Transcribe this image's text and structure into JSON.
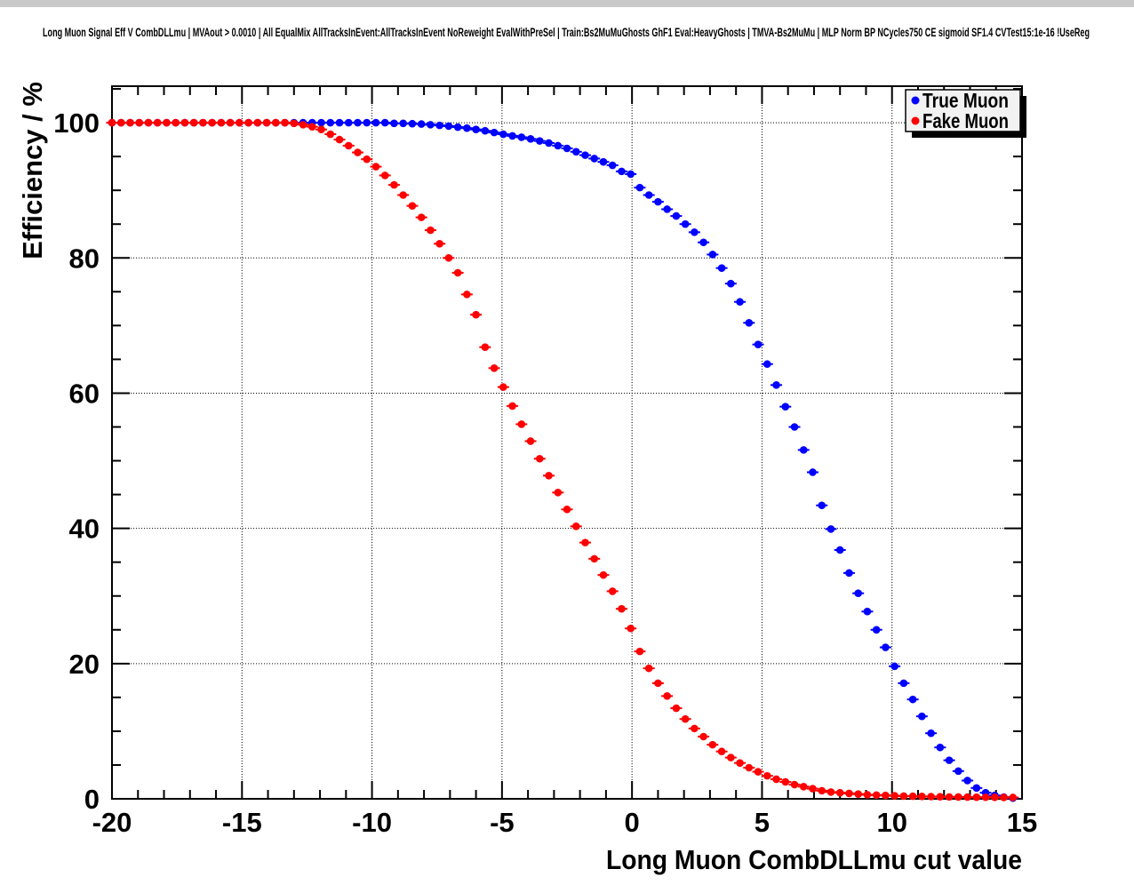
{
  "chart_data": {
    "type": "scatter",
    "title": "Long Muon Signal Eff V CombDLLmu | MVAout > 0.0010 | All EqualMix AllTracksInEvent:AllTracksInEvent NoReweight EvalWithPreSel | Train:Bs2MuMuGhosts GhF1 Eval:HeavyGhosts | TMVA-Bs2MuMu | MLP Norm BP NCycles750 CE sigmoid SF1.4 CVTest15:1e-16 !UseReg",
    "xlabel": "Long Muon CombDLLmu cut value",
    "ylabel": "Efficiency / %",
    "xlim": [
      -20,
      15
    ],
    "ylim": [
      0,
      105.4
    ],
    "x_major_ticks": [
      -20,
      -15,
      -10,
      -5,
      0,
      5,
      10,
      15
    ],
    "y_major_ticks": [
      0,
      20,
      40,
      60,
      80,
      100
    ],
    "x_minor_step": 1,
    "y_minor_step": 5,
    "grid": {
      "style": "dotted",
      "x_lines": [
        -15,
        -10,
        -5,
        0,
        5,
        10
      ],
      "y_lines": [
        20,
        40,
        60,
        80,
        100
      ]
    },
    "legend": {
      "position": "top-right",
      "entries": [
        {
          "label": "True Muon",
          "color": "#0000ff"
        },
        {
          "label": "Fake Muon",
          "color": "#ff0000"
        }
      ]
    },
    "colors": {
      "true_muon": "#0000ff",
      "fake_muon": "#ff0000",
      "legend_bg": "#f2f2f2",
      "frame": "#000000"
    },
    "x": [
      -20,
      -19.65,
      -19.3,
      -18.95,
      -18.6,
      -18.25,
      -17.9,
      -17.55,
      -17.2,
      -16.85,
      -16.5,
      -16.15,
      -15.8,
      -15.45,
      -15.1,
      -14.75,
      -14.4,
      -14.05,
      -13.7,
      -13.35,
      -13,
      -12.65,
      -12.3,
      -11.95,
      -11.6,
      -11.25,
      -10.9,
      -10.55,
      -10.2,
      -9.85,
      -9.5,
      -9.15,
      -8.8,
      -8.45,
      -8.1,
      -7.75,
      -7.4,
      -7.05,
      -6.7,
      -6.35,
      -6,
      -5.65,
      -5.3,
      -4.95,
      -4.6,
      -4.25,
      -3.9,
      -3.55,
      -3.2,
      -2.85,
      -2.5,
      -2.15,
      -1.8,
      -1.45,
      -1.1,
      -0.75,
      -0.4,
      -0.05,
      0.3,
      0.65,
      1,
      1.35,
      1.7,
      2.05,
      2.4,
      2.75,
      3.1,
      3.45,
      3.8,
      4.15,
      4.5,
      4.85,
      5.2,
      5.55,
      5.9,
      6.25,
      6.6,
      6.95,
      7.3,
      7.65,
      8,
      8.35,
      8.7,
      9.05,
      9.4,
      9.75,
      10.1,
      10.45,
      10.8,
      11.15,
      11.5,
      11.85,
      12.2,
      12.55,
      12.9,
      13.25,
      13.6,
      13.95,
      14.3,
      14.65
    ],
    "series": [
      {
        "name": "True Muon",
        "color": "#0000ff",
        "values": [
          100,
          100,
          100,
          100,
          100,
          100,
          100,
          100,
          100,
          100,
          100,
          100,
          100,
          100,
          100,
          100,
          100,
          100,
          100,
          100,
          100,
          100,
          100,
          100,
          100,
          100,
          100,
          100,
          100,
          100,
          100,
          99.9,
          99.9,
          99.85,
          99.8,
          99.7,
          99.6,
          99.5,
          99.35,
          99.2,
          99,
          98.8,
          98.55,
          98.3,
          98.05,
          97.85,
          97.6,
          97.3,
          97,
          96.6,
          96.2,
          95.7,
          95.2,
          94.7,
          94.2,
          93.7,
          92.8,
          92.4,
          90.4,
          89.3,
          88.3,
          87.2,
          86.2,
          85,
          83.8,
          82.3,
          80.5,
          78.5,
          76.2,
          73.5,
          70.4,
          67.2,
          64.3,
          61.2,
          58,
          55,
          51.6,
          48.3,
          43.4,
          39.9,
          36.8,
          33.4,
          30.4,
          27.7,
          25,
          22.4,
          19.6,
          17.1,
          14.7,
          12.2,
          9.7,
          7.6,
          5.7,
          4.1,
          2.7,
          1.6,
          0.9,
          0.5,
          0.25,
          0.1
        ]
      },
      {
        "name": "Fake Muon",
        "color": "#ff0000",
        "values": [
          100,
          100,
          100,
          100,
          100,
          100,
          100,
          100,
          100,
          100,
          100,
          100,
          100,
          100,
          100,
          100,
          100,
          100,
          100,
          100,
          99.9,
          99.7,
          99.4,
          99,
          98.3,
          97.5,
          96.6,
          95.6,
          94.6,
          93.5,
          92.2,
          90.8,
          89.3,
          87.7,
          86,
          84.1,
          82.1,
          80,
          77.8,
          74.6,
          71.6,
          66.8,
          63.7,
          60.9,
          58.1,
          55.4,
          52.9,
          50.3,
          47.8,
          45.3,
          42.8,
          40.3,
          37.9,
          35.5,
          33.1,
          30.7,
          28.1,
          25.2,
          21.8,
          19.3,
          17.1,
          15.2,
          13.4,
          11.8,
          10.4,
          9.2,
          8,
          7,
          6.1,
          5.3,
          4.6,
          4,
          3.4,
          2.9,
          2.5,
          2.1,
          1.8,
          1.5,
          1.2,
          1,
          0.9,
          0.8,
          0.7,
          0.6,
          0.55,
          0.5,
          0.45,
          0.4,
          0.38,
          0.35,
          0.33,
          0.3,
          0.28,
          0.27,
          0.25,
          0.24,
          0.23,
          0.22,
          0.21,
          0.2
        ]
      }
    ]
  }
}
